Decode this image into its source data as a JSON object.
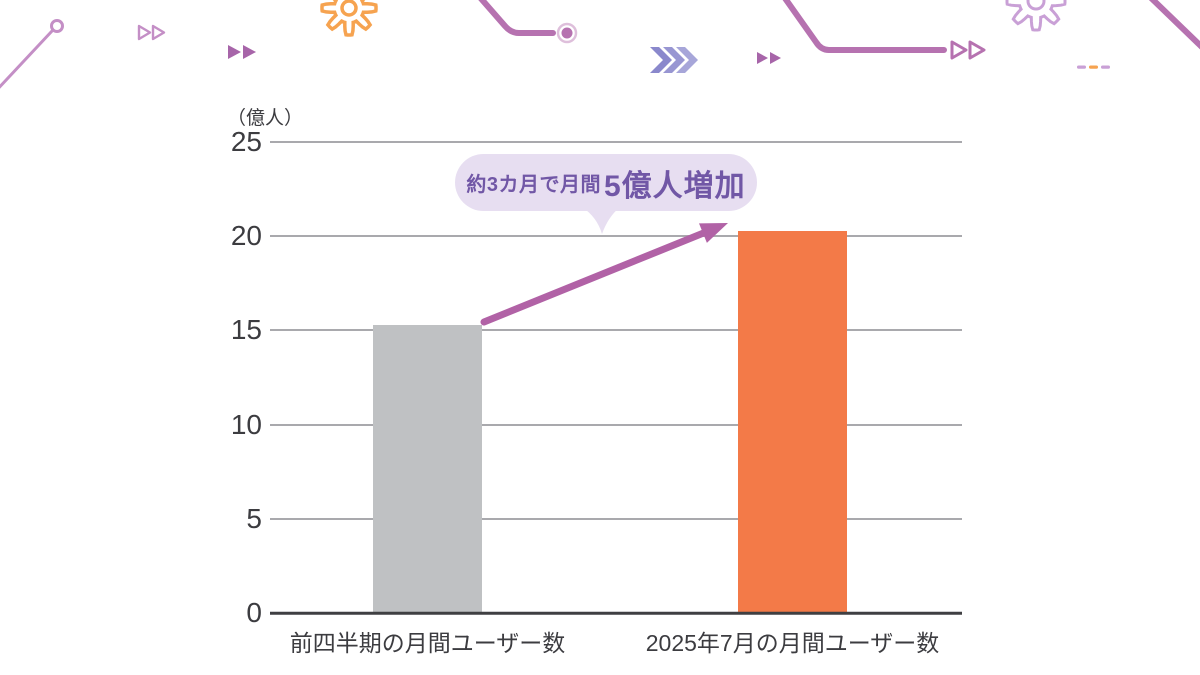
{
  "chart_data": {
    "type": "bar",
    "title": "",
    "unit_label": "（億人）",
    "categories": [
      "前四半期の月間ユーザー数",
      "2025年7月の月間ユーザー数"
    ],
    "values": [
      15.3,
      20.3
    ],
    "bar_colors": [
      "#BFC1C3",
      "#F37A48"
    ],
    "ylim": [
      0,
      25
    ],
    "yticks": [
      0,
      5,
      10,
      15,
      20,
      25
    ],
    "grid": true,
    "legend": false,
    "annotation": {
      "text_small": "約3カ月で月間",
      "text_large": "5億人増加",
      "full_text": "約3カ月で月間5億人増加"
    }
  },
  "colors": {
    "bar_gray": "#BFC1C3",
    "bar_orange": "#F37A48",
    "arrow_purple": "#B162A6",
    "bubble_bg": "#E7DEF1",
    "bubble_text": "#7157A6",
    "grid_line": "#A9A9AD",
    "axis_line": "#3F3F42",
    "text_dark": "#3C3C40",
    "deco_purple": "#B672B0",
    "deco_fill_purple": "#A765A9",
    "deco_light_purple": "#C48FC6",
    "deco_lavender": "#C9A0D6",
    "deco_indigo": "#8A88CC",
    "deco_orange": "#F6A350"
  },
  "decorations": {
    "icons": [
      "node-line-icon",
      "fast-forward-outline-icon",
      "fast-forward-filled-icon",
      "gear-icon",
      "circuit-line-dot-icon",
      "triple-chevron-icon",
      "fast-forward-filled-icon",
      "circuit-line-arrows-icon",
      "gear-icon",
      "dashed-line-icon",
      "diagonal-line-icon"
    ]
  }
}
